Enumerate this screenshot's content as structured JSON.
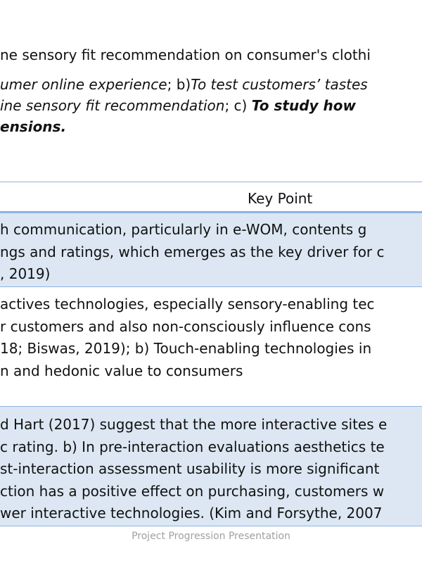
{
  "intro": {
    "line1": "ne sensory fit recommendation on consumer's clothi",
    "line2": [
      "umer online experience",
      "; b)",
      "To test customers’ tastes"
    ],
    "line3": [
      "ine sensory fit recommendation",
      "; c) ",
      "To study how"
    ],
    "line4": "ensions."
  },
  "table": {
    "header": "Key Point",
    "rows": [
      [
        "h communication, particularly in e-WOM, contents g",
        "ngs and ratings, which emerges as the key driver for c",
        ", 2019)"
      ],
      [
        "actives technologies, especially sensory-enabling tec",
        "r customers and also non-consciously influence cons",
        "18; Biswas, 2019); b) Touch-enabling technologies in",
        "n and hedonic value to consumers"
      ],
      [
        "d Hart (2017) suggest that the more interactive sites e",
        "c rating. b) In pre-interaction evaluations aesthetics te",
        "st-interaction assessment usability is more significant",
        "ction has a positive effect on purchasing, customers w",
        "wer interactive technologies. (Kim and Forsythe, 2007"
      ]
    ]
  },
  "footer": "Project Progression Presentation"
}
